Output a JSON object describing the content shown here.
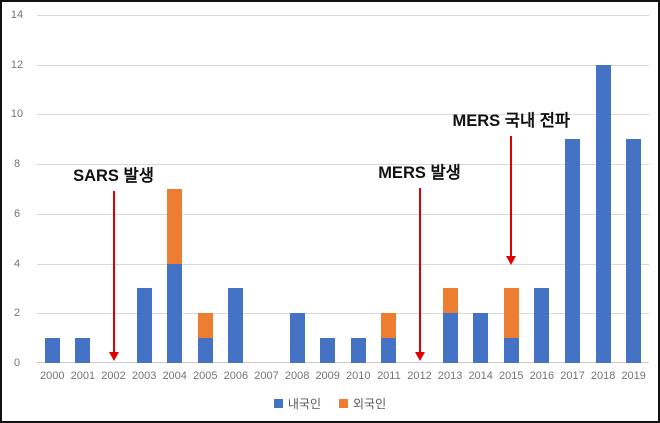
{
  "frame": {
    "background": "#FFFFFF",
    "border_color": "#111111"
  },
  "chart_data": {
    "type": "bar",
    "stacked": true,
    "title": "",
    "xlabel": "",
    "ylabel": "",
    "categories": [
      "2000",
      "2001",
      "2002",
      "2003",
      "2004",
      "2005",
      "2006",
      "2007",
      "2008",
      "2009",
      "2010",
      "2011",
      "2012",
      "2013",
      "2014",
      "2015",
      "2016",
      "2017",
      "2018",
      "2019"
    ],
    "series": [
      {
        "name": "내국인",
        "key": "domestic",
        "color": "#4472C4",
        "values": [
          1,
          1,
          0,
          3,
          4,
          1,
          3,
          0,
          2,
          1,
          1,
          1,
          0,
          2,
          2,
          1,
          3,
          9,
          12,
          9
        ]
      },
      {
        "name": "외국인",
        "key": "foreign",
        "color": "#ED7D31",
        "values": [
          0,
          0,
          0,
          0,
          3,
          1,
          0,
          0,
          0,
          0,
          0,
          1,
          0,
          1,
          0,
          2,
          0,
          0,
          0,
          0
        ]
      }
    ],
    "ylim": [
      0,
      14
    ],
    "yticks": [
      0,
      2,
      4,
      6,
      8,
      10,
      12,
      14
    ],
    "grid": true,
    "gridline_color": "#D9D9D9",
    "axis_label_color": "#757575",
    "legend_position": "bottom",
    "legend_text_color": "#595959",
    "annotation_text_color": "#111111",
    "annotations": [
      {
        "key": "sars-outbreak",
        "text": "SARS 발생",
        "target_category": "2002",
        "arrow_color": "#E00000",
        "arrow_from_value": 6.9,
        "arrow_to_value": 0.1
      },
      {
        "key": "mers-outbreak",
        "text": "MERS 발생",
        "target_category": "2012",
        "arrow_color": "#E00000",
        "arrow_from_value": 7.05,
        "arrow_to_value": 0.1
      },
      {
        "key": "mers-domestic-spread",
        "text": "MERS 국내 전파",
        "target_category": "2015",
        "arrow_color": "#E00000",
        "arrow_from_value": 9.15,
        "arrow_to_value": 3.95
      }
    ]
  }
}
